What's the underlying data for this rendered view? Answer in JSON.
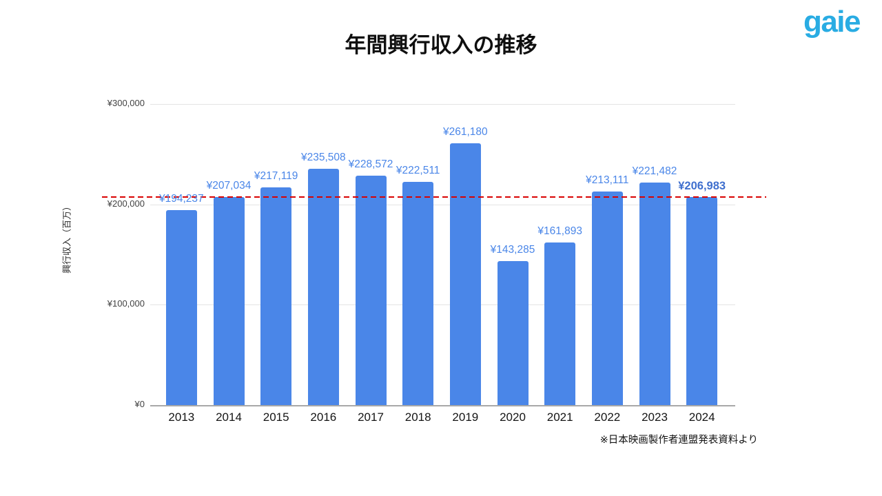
{
  "logo": {
    "text": "gaie",
    "color": "#29ACE3"
  },
  "title": "年間興行収入の推移",
  "source_note": "※日本映画製作者連盟発表資料より",
  "chart_data": {
    "type": "bar",
    "title": "年間興行収入の推移",
    "xlabel": "",
    "ylabel": "興行収入（百万）",
    "categories": [
      "2013",
      "2014",
      "2015",
      "2016",
      "2017",
      "2018",
      "2019",
      "2020",
      "2021",
      "2022",
      "2023",
      "2024"
    ],
    "values": [
      194237,
      207034,
      217119,
      235508,
      228572,
      222511,
      261180,
      143285,
      161893,
      213111,
      221482,
      206983
    ],
    "value_labels": [
      "¥194,237",
      "¥207,034",
      "¥217,119",
      "¥235,508",
      "¥228,572",
      "¥222,511",
      "¥261,180",
      "¥143,285",
      "¥161,893",
      "¥213,111",
      "¥221,482",
      "¥206,983"
    ],
    "ylim": [
      0,
      300000
    ],
    "yticks": [
      {
        "value": 300000,
        "label": "¥300,000"
      },
      {
        "value": 200000,
        "label": "¥200,000"
      },
      {
        "value": 100000,
        "label": "¥100,000"
      },
      {
        "value": 0,
        "label": "¥0"
      }
    ],
    "grid": true,
    "legend": "none",
    "bar_color": "#4A86E8",
    "label_color": "#4A86E8",
    "highlight_last_label": true,
    "highlight_label_color": "#3F6FCE",
    "reference_line": {
      "value": 206983,
      "color": "#D90000",
      "style": "dashed"
    }
  }
}
